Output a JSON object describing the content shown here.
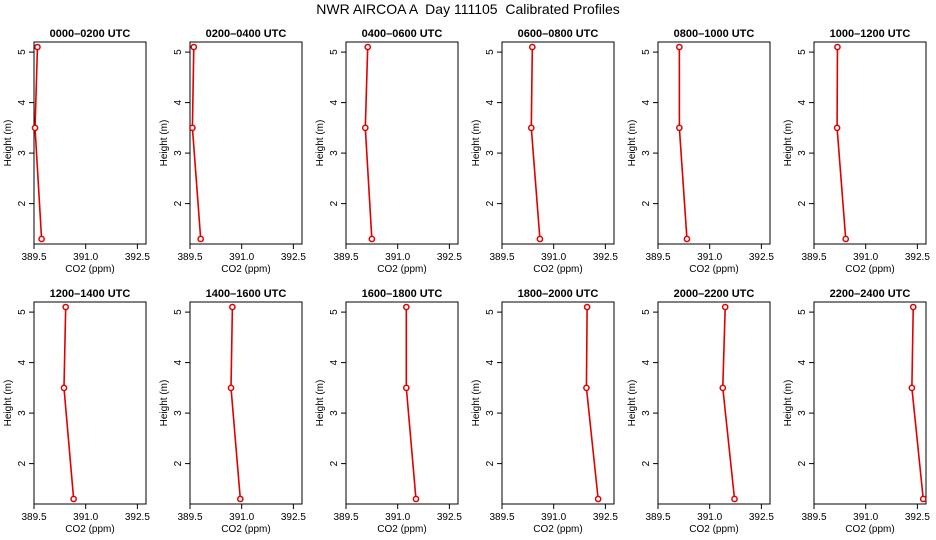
{
  "figure": {
    "title": "NWR AIRCOA A  Day 111105  Calibrated Profiles"
  },
  "style": {
    "line_color": "#e00000",
    "axis_color": "#000000"
  },
  "chart_data": [
    {
      "type": "line",
      "title": "0000–0200 UTC",
      "xlabel": "CO2 (ppm)",
      "ylabel": "Height (m)",
      "xlim": [
        389.5,
        392.75
      ],
      "ylim": [
        1.2,
        5.2
      ],
      "xticks": [
        "389.5",
        "391.0",
        "392.5"
      ],
      "yticks": [
        "2",
        "3",
        "4",
        "5"
      ],
      "series": [
        {
          "x": [
            389.6,
            389.53,
            389.72
          ],
          "y": [
            5.1,
            3.5,
            1.3
          ]
        }
      ]
    },
    {
      "type": "line",
      "title": "0200–0400 UTC",
      "xlabel": "CO2 (ppm)",
      "ylabel": "Height (m)",
      "xlim": [
        389.5,
        392.75
      ],
      "ylim": [
        1.2,
        5.2
      ],
      "xticks": [
        "389.5",
        "391.0",
        "392.5"
      ],
      "yticks": [
        "2",
        "3",
        "4",
        "5"
      ],
      "series": [
        {
          "x": [
            389.61,
            389.57,
            389.81
          ],
          "y": [
            5.1,
            3.5,
            1.3
          ]
        }
      ]
    },
    {
      "type": "line",
      "title": "0400–0600 UTC",
      "xlabel": "CO2 (ppm)",
      "ylabel": "Height (m)",
      "xlim": [
        389.5,
        392.75
      ],
      "ylim": [
        1.2,
        5.2
      ],
      "xticks": [
        "389.5",
        "391.0",
        "392.5"
      ],
      "yticks": [
        "2",
        "3",
        "4",
        "5"
      ],
      "series": [
        {
          "x": [
            390.13,
            390.06,
            390.25
          ],
          "y": [
            5.1,
            3.5,
            1.3
          ]
        }
      ]
    },
    {
      "type": "line",
      "title": "0600–0800 UTC",
      "xlabel": "CO2 (ppm)",
      "ylabel": "Height (m)",
      "xlim": [
        389.5,
        392.75
      ],
      "ylim": [
        1.2,
        5.2
      ],
      "xticks": [
        "389.5",
        "391.0",
        "392.5"
      ],
      "yticks": [
        "2",
        "3",
        "4",
        "5"
      ],
      "series": [
        {
          "x": [
            390.38,
            390.35,
            390.6
          ],
          "y": [
            5.1,
            3.5,
            1.3
          ]
        }
      ]
    },
    {
      "type": "line",
      "title": "0800–1000 UTC",
      "xlabel": "CO2 (ppm)",
      "ylabel": "Height (m)",
      "xlim": [
        389.5,
        392.75
      ],
      "ylim": [
        1.2,
        5.2
      ],
      "xticks": [
        "389.5",
        "391.0",
        "392.5"
      ],
      "yticks": [
        "2",
        "3",
        "4",
        "5"
      ],
      "series": [
        {
          "x": [
            390.12,
            390.12,
            390.34
          ],
          "y": [
            5.1,
            3.5,
            1.3
          ]
        }
      ]
    },
    {
      "type": "line",
      "title": "1000–1200 UTC",
      "xlabel": "CO2 (ppm)",
      "ylabel": "Height (m)",
      "xlim": [
        389.5,
        392.75
      ],
      "ylim": [
        1.2,
        5.2
      ],
      "xticks": [
        "389.5",
        "391.0",
        "392.5"
      ],
      "yticks": [
        "2",
        "3",
        "4",
        "5"
      ],
      "series": [
        {
          "x": [
            390.18,
            390.17,
            390.42
          ],
          "y": [
            5.1,
            3.5,
            1.3
          ]
        }
      ]
    },
    {
      "type": "line",
      "title": "1200–1400 UTC",
      "xlabel": "CO2 (ppm)",
      "ylabel": "Height (m)",
      "xlim": [
        389.5,
        392.75
      ],
      "ylim": [
        1.2,
        5.2
      ],
      "xticks": [
        "389.5",
        "391.0",
        "392.5"
      ],
      "yticks": [
        "2",
        "3",
        "4",
        "5"
      ],
      "series": [
        {
          "x": [
            390.42,
            390.37,
            390.65
          ],
          "y": [
            5.1,
            3.5,
            1.3
          ]
        }
      ]
    },
    {
      "type": "line",
      "title": "1400–1600 UTC",
      "xlabel": "CO2 (ppm)",
      "ylabel": "Height (m)",
      "xlim": [
        389.5,
        392.75
      ],
      "ylim": [
        1.2,
        5.2
      ],
      "xticks": [
        "389.5",
        "391.0",
        "392.5"
      ],
      "yticks": [
        "2",
        "3",
        "4",
        "5"
      ],
      "series": [
        {
          "x": [
            390.73,
            390.69,
            390.96
          ],
          "y": [
            5.1,
            3.5,
            1.3
          ]
        }
      ]
    },
    {
      "type": "line",
      "title": "1600–1800 UTC",
      "xlabel": "CO2 (ppm)",
      "ylabel": "Height (m)",
      "xlim": [
        389.5,
        392.75
      ],
      "ylim": [
        1.2,
        5.2
      ],
      "xticks": [
        "389.5",
        "391.0",
        "392.5"
      ],
      "yticks": [
        "2",
        "3",
        "4",
        "5"
      ],
      "series": [
        {
          "x": [
            391.25,
            391.25,
            391.53
          ],
          "y": [
            5.1,
            3.5,
            1.3
          ]
        }
      ]
    },
    {
      "type": "line",
      "title": "1800–2000 UTC",
      "xlabel": "CO2 (ppm)",
      "ylabel": "Height (m)",
      "xlim": [
        389.5,
        392.75
      ],
      "ylim": [
        1.2,
        5.2
      ],
      "xticks": [
        "389.5",
        "391.0",
        "392.5"
      ],
      "yticks": [
        "2",
        "3",
        "4",
        "5"
      ],
      "series": [
        {
          "x": [
            391.97,
            391.95,
            392.29
          ],
          "y": [
            5.1,
            3.5,
            1.3
          ]
        }
      ]
    },
    {
      "type": "line",
      "title": "2000–2200 UTC",
      "xlabel": "CO2 (ppm)",
      "ylabel": "Height (m)",
      "xlim": [
        389.5,
        392.75
      ],
      "ylim": [
        1.2,
        5.2
      ],
      "xticks": [
        "389.5",
        "391.0",
        "392.5"
      ],
      "yticks": [
        "2",
        "3",
        "4",
        "5"
      ],
      "series": [
        {
          "x": [
            391.45,
            391.38,
            391.72
          ],
          "y": [
            5.1,
            3.5,
            1.3
          ]
        }
      ]
    },
    {
      "type": "line",
      "title": "2200–2400 UTC",
      "xlabel": "CO2 (ppm)",
      "ylabel": "Height (m)",
      "xlim": [
        389.5,
        392.75
      ],
      "ylim": [
        1.2,
        5.2
      ],
      "xticks": [
        "389.5",
        "391.0",
        "392.5"
      ],
      "yticks": [
        "2",
        "3",
        "4",
        "5"
      ],
      "series": [
        {
          "x": [
            392.38,
            392.34,
            392.67
          ],
          "y": [
            5.1,
            3.5,
            1.3
          ]
        }
      ]
    }
  ]
}
